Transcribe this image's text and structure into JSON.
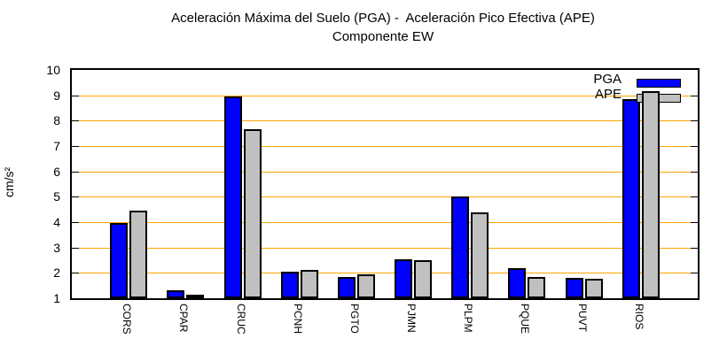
{
  "chart_data": {
    "type": "bar",
    "title_line1": "Aceleración Máxima del Suelo (PGA) -  Aceleración Pico Efectiva (APE)",
    "title_line2": "Componente EW",
    "ylabel": "cm/s²",
    "xlabel": "",
    "ylim": [
      1,
      10
    ],
    "yticks": [
      1,
      2,
      3,
      4,
      5,
      6,
      7,
      8,
      9,
      10
    ],
    "grid": true,
    "grid_color": "#ffa500",
    "legend_position": "top-right-inside",
    "categories": [
      "CORS",
      "CPAR",
      "CRUC",
      "PCNH",
      "PGTO",
      "PJMN",
      "PLPM",
      "PQUE",
      "PUVT",
      "RIOS"
    ],
    "series": [
      {
        "name": "PGA",
        "color": "#0000ff",
        "values": [
          3.95,
          1.3,
          8.95,
          2.05,
          1.85,
          2.55,
          5.0,
          2.2,
          1.8,
          8.85
        ]
      },
      {
        "name": "APE",
        "color": "#c0c0c0",
        "values": [
          4.45,
          1.1,
          7.65,
          2.1,
          1.95,
          2.5,
          4.4,
          1.85,
          1.75,
          9.15
        ]
      }
    ]
  }
}
